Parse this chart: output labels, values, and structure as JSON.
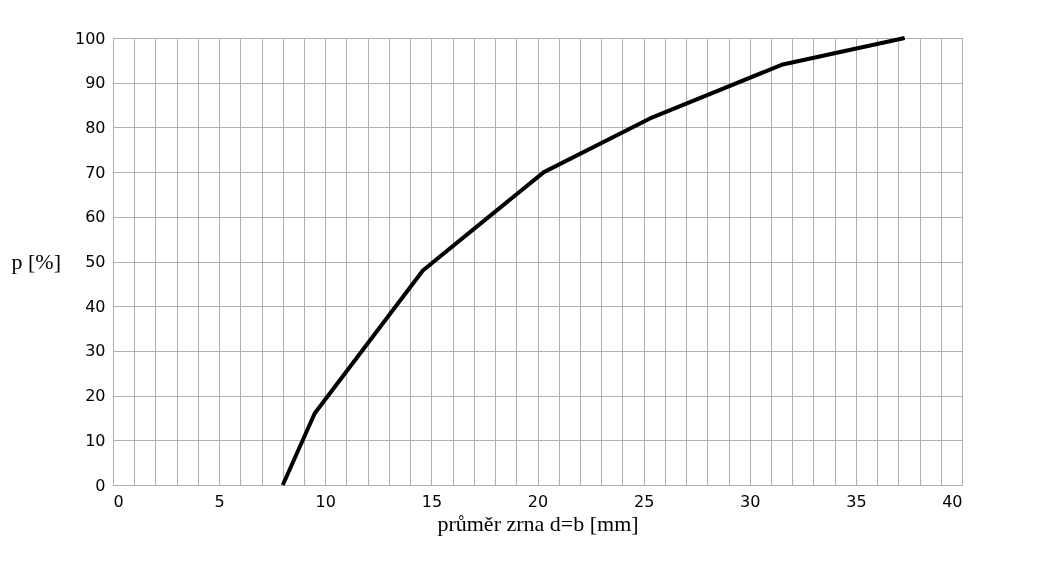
{
  "chart_data": {
    "type": "line",
    "xlabel": "průměr zrna d=b [mm]",
    "ylabel": "p [%]",
    "x": [
      8,
      9.5,
      14.6,
      20.3,
      25.3,
      31.5,
      37.3
    ],
    "series": [
      {
        "color": "#000000",
        "values": [
          0,
          16,
          48,
          70,
          82,
          94,
          100
        ]
      }
    ],
    "xlim": [
      0,
      40
    ],
    "xticks": [
      0,
      {
        "value": 1,
        "label": null
      },
      {
        "value": 2,
        "label": null
      },
      {
        "value": 3,
        "label": null
      },
      {
        "value": 4,
        "label": null
      },
      5,
      {
        "value": 6,
        "label": null
      },
      {
        "value": 7,
        "label": null
      },
      {
        "value": 8,
        "label": null
      },
      {
        "value": 9,
        "label": null
      },
      10,
      {
        "value": 11,
        "label": null
      },
      {
        "value": 12,
        "label": null
      },
      {
        "value": 13,
        "label": null
      },
      {
        "value": 14,
        "label": null
      },
      15,
      {
        "value": 16,
        "label": null
      },
      {
        "value": 17,
        "label": null
      },
      {
        "value": 18,
        "label": null
      },
      {
        "value": 19,
        "label": null
      },
      20,
      {
        "value": 21,
        "label": null
      },
      {
        "value": 22,
        "label": null
      },
      {
        "value": 23,
        "label": null
      },
      {
        "value": 24,
        "label": null
      },
      25,
      {
        "value": 26,
        "label": null
      },
      {
        "value": 27,
        "label": null
      },
      {
        "value": 28,
        "label": null
      },
      {
        "value": 29,
        "label": null
      },
      30,
      {
        "value": 31,
        "label": null
      },
      {
        "value": 32,
        "label": null
      },
      {
        "value": 33,
        "label": null
      },
      {
        "value": 34,
        "label": null
      },
      35,
      {
        "value": 36,
        "label": null
      },
      {
        "value": 37,
        "label": null
      },
      {
        "value": 38,
        "label": null
      },
      {
        "value": 39,
        "label": null
      },
      40
    ],
    "ylim": [
      0,
      100
    ],
    "yticks": [
      0,
      10,
      20,
      30,
      40,
      50,
      60,
      70,
      80,
      90,
      100
    ],
    "grid": true,
    "marker": "none",
    "line_style": "solid"
  }
}
